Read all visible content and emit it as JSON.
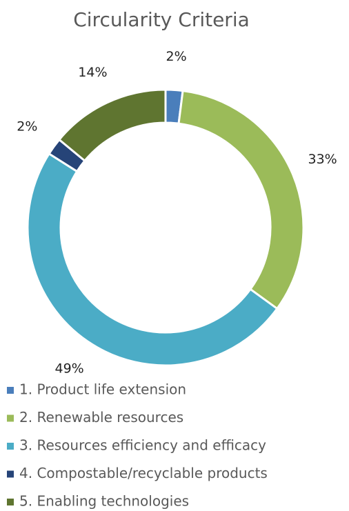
{
  "chart_data": {
    "type": "donut",
    "title": "Circularity Criteria",
    "categories": [
      "1. Product life extension",
      "2. Renewable resources",
      "3. Resources efficiency and efficacy",
      "4. Compostable/recyclable products",
      "5. Enabling technologies"
    ],
    "values": [
      2,
      33,
      49,
      2,
      14
    ],
    "value_labels": [
      "2%",
      "33%",
      "49%",
      "2%",
      "14%"
    ],
    "colors": [
      "#4a7ebb",
      "#9bbb59",
      "#4bacc6",
      "#264478",
      "#5f7530"
    ],
    "legend": "bottom"
  }
}
